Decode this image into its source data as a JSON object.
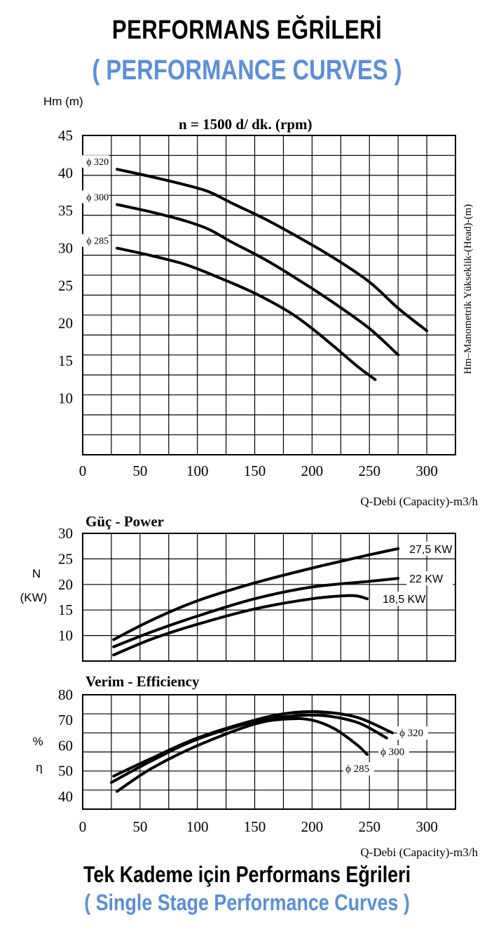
{
  "header": {
    "title": "PERFORMANS EĞRİLERİ",
    "subtitle": "( PERFORMANCE CURVES )"
  },
  "footer": {
    "title": "Tek Kademe için Performans Eğrileri",
    "subtitle": "( Single Stage Performance Curves )"
  },
  "colors": {
    "curve": "#000000",
    "grid": "#000000",
    "accent": "#5b8fd6"
  },
  "chart_data": [
    {
      "type": "line",
      "title": "n = 1500 d/ dk.  (rpm)",
      "ylabel": "Hm (m)",
      "ylabel_right": "Hm–Manometrik Yükseklik-(Head)-(m)",
      "xlabel": "Q-Debi (Capacity)-m3/h",
      "xlim": [
        0,
        325
      ],
      "ylim": [
        2.5,
        45
      ],
      "xticks": [
        0,
        50,
        100,
        150,
        200,
        250,
        300
      ],
      "yticks": [
        10,
        15,
        20,
        25,
        30,
        35,
        40,
        45
      ],
      "grid": true,
      "series": [
        {
          "name": "ϕ 320",
          "x": [
            30,
            60,
            90,
            110,
            130,
            160,
            190,
            220,
            250,
            275,
            300
          ],
          "y": [
            40.5,
            39.5,
            38.4,
            37.5,
            36.0,
            33.8,
            31.3,
            28.6,
            25.5,
            22.0,
            19.0
          ]
        },
        {
          "name": "ϕ 300",
          "x": [
            30,
            60,
            90,
            110,
            130,
            160,
            190,
            220,
            250,
            275
          ],
          "y": [
            35.8,
            34.8,
            33.6,
            32.5,
            30.8,
            28.4,
            25.6,
            22.6,
            19.3,
            15.8
          ]
        },
        {
          "name": "ϕ 285",
          "x": [
            30,
            60,
            90,
            120,
            150,
            180,
            200,
            220,
            240,
            255
          ],
          "y": [
            30.0,
            29.0,
            27.8,
            26.0,
            24.0,
            21.5,
            19.3,
            16.8,
            14.2,
            12.5
          ]
        }
      ]
    },
    {
      "type": "line",
      "title": "Güç - Power",
      "ylabel": "N",
      "ylabel2": "(KW)",
      "xlim": [
        0,
        325
      ],
      "ylim": [
        5,
        30
      ],
      "yticks": [
        10,
        15,
        20,
        25,
        30
      ],
      "grid": true,
      "series": [
        {
          "name": "27,5 KW",
          "x": [
            27,
            60,
            100,
            150,
            200,
            250,
            275
          ],
          "y": [
            9.2,
            13.0,
            16.8,
            20.3,
            23.2,
            25.8,
            27.0
          ]
        },
        {
          "name": "22 KW",
          "x": [
            27,
            60,
            100,
            150,
            200,
            250,
            275
          ],
          "y": [
            7.8,
            10.7,
            13.8,
            17.2,
            19.5,
            20.6,
            21.2
          ]
        },
        {
          "name": "18,5 KW",
          "x": [
            27,
            60,
            100,
            150,
            200,
            230,
            240,
            248
          ],
          "y": [
            6.2,
            9.3,
            12.2,
            15.2,
            17.2,
            17.8,
            17.7,
            17.2
          ]
        }
      ]
    },
    {
      "type": "line",
      "title": "Verim - Efficiency",
      "ylabel": "%",
      "ylabel2": "η",
      "xlabel": "Q-Debi (Capacity)-m3/h",
      "xlim": [
        0,
        325
      ],
      "ylim": [
        35,
        80
      ],
      "xticks": [
        0,
        50,
        100,
        150,
        200,
        250,
        300
      ],
      "yticks": [
        40,
        50,
        60,
        70,
        80
      ],
      "grid": true,
      "series": [
        {
          "name": "ϕ 320",
          "x": [
            27,
            60,
            100,
            150,
            180,
            210,
            240,
            270
          ],
          "y": [
            48.0,
            55.0,
            63.0,
            70.0,
            72.8,
            73.2,
            71.0,
            65.0
          ]
        },
        {
          "name": "ϕ 300",
          "x": [
            25,
            60,
            100,
            150,
            180,
            210,
            240,
            265
          ],
          "y": [
            45.5,
            54.0,
            62.5,
            69.5,
            71.5,
            71.8,
            69.0,
            63.0
          ]
        },
        {
          "name": "ϕ 285",
          "x": [
            30,
            60,
            100,
            150,
            180,
            200,
            220,
            240,
            248
          ],
          "y": [
            42.0,
            51.0,
            60.0,
            68.5,
            70.5,
            70.0,
            66.5,
            60.0,
            56.5
          ]
        }
      ]
    }
  ]
}
